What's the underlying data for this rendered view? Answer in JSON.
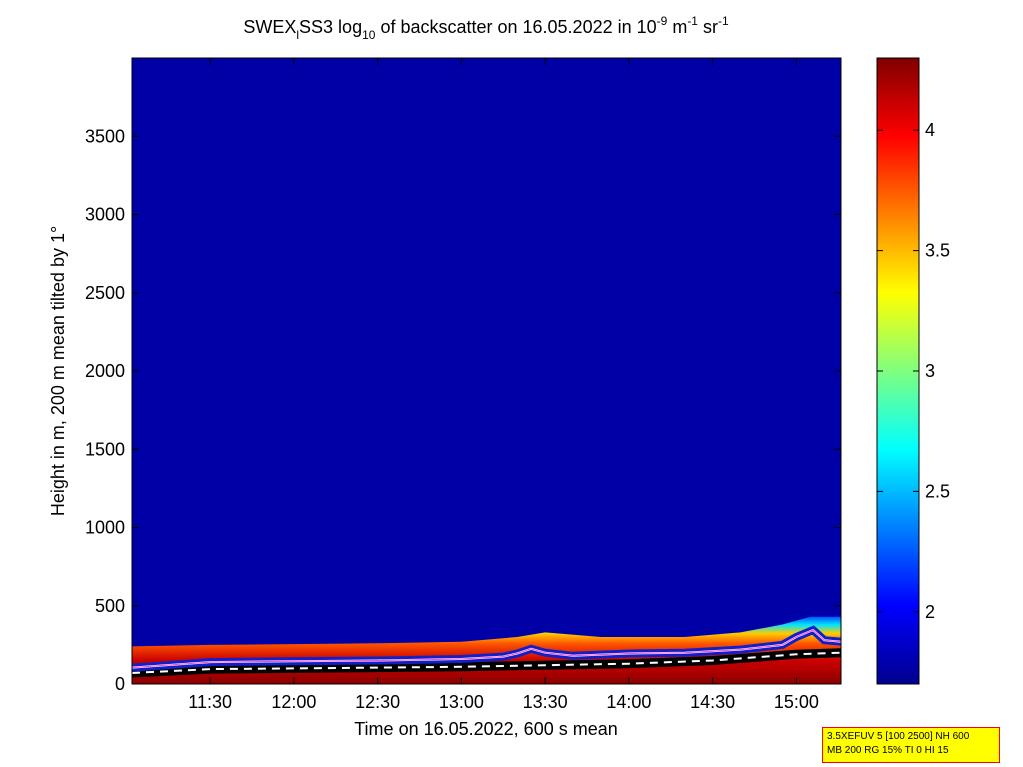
{
  "figure": {
    "title_parts": [
      "SWEX",
      "l",
      "SS3 log",
      "10",
      " of backscatter on 16.05.2022 in 10",
      "-9",
      " m",
      "-1",
      " sr",
      "-1"
    ]
  },
  "info_box": {
    "line1": "3.5XEFUV 5 [100 2500] NH 600",
    "line2": "MB 200 RG 15% TI 0 HI 15"
  },
  "chart_data": {
    "type": "heatmap",
    "title": "SWEX_l SS3 log10 of backscatter on 16.05.2022 in 10^-9 m^-1 sr^-1",
    "xlabel": "Time on 16.05.2022, 600 s mean",
    "ylabel": "Height in m, 200 m mean tilted by 1°",
    "x_ticks": [
      "11:30",
      "12:00",
      "12:30",
      "13:00",
      "13:30",
      "14:00",
      "14:30",
      "15:00"
    ],
    "x_tick_minutes": [
      690,
      720,
      750,
      780,
      810,
      840,
      870,
      900
    ],
    "xlim_minutes": [
      662,
      916
    ],
    "y_ticks": [
      "0",
      "500",
      "1000",
      "1500",
      "2000",
      "2500",
      "3000",
      "3500"
    ],
    "y_tick_values": [
      0,
      500,
      1000,
      1500,
      2000,
      2500,
      3000,
      3500
    ],
    "ylim": [
      0,
      4000
    ],
    "colorbar": {
      "ticks": [
        "2",
        "2.5",
        "3",
        "3.5",
        "4"
      ],
      "tick_values": [
        2,
        2.5,
        3,
        3.5,
        4
      ],
      "range": [
        1.7,
        4.3
      ],
      "colormap": "jet"
    },
    "background_value": 1.8,
    "boundary_layer_top_m": [
      [
        662,
        240
      ],
      [
        690,
        250
      ],
      [
        720,
        255
      ],
      [
        750,
        260
      ],
      [
        780,
        270
      ],
      [
        800,
        300
      ],
      [
        810,
        330
      ],
      [
        830,
        300
      ],
      [
        860,
        300
      ],
      [
        880,
        330
      ],
      [
        895,
        380
      ],
      [
        905,
        430
      ],
      [
        916,
        430
      ]
    ],
    "aerosol_layer_line_m": [
      [
        662,
        105
      ],
      [
        690,
        140
      ],
      [
        720,
        145
      ],
      [
        750,
        150
      ],
      [
        780,
        160
      ],
      [
        795,
        175
      ],
      [
        800,
        195
      ],
      [
        805,
        225
      ],
      [
        810,
        200
      ],
      [
        820,
        180
      ],
      [
        840,
        195
      ],
      [
        860,
        200
      ],
      [
        880,
        220
      ],
      [
        895,
        250
      ],
      [
        900,
        300
      ],
      [
        906,
        345
      ],
      [
        910,
        280
      ],
      [
        916,
        270
      ]
    ],
    "lower_boundary_m": [
      [
        662,
        70
      ],
      [
        690,
        95
      ],
      [
        720,
        100
      ],
      [
        750,
        105
      ],
      [
        780,
        110
      ],
      [
        810,
        120
      ],
      [
        840,
        130
      ],
      [
        870,
        150
      ],
      [
        900,
        190
      ],
      [
        916,
        200
      ]
    ]
  }
}
